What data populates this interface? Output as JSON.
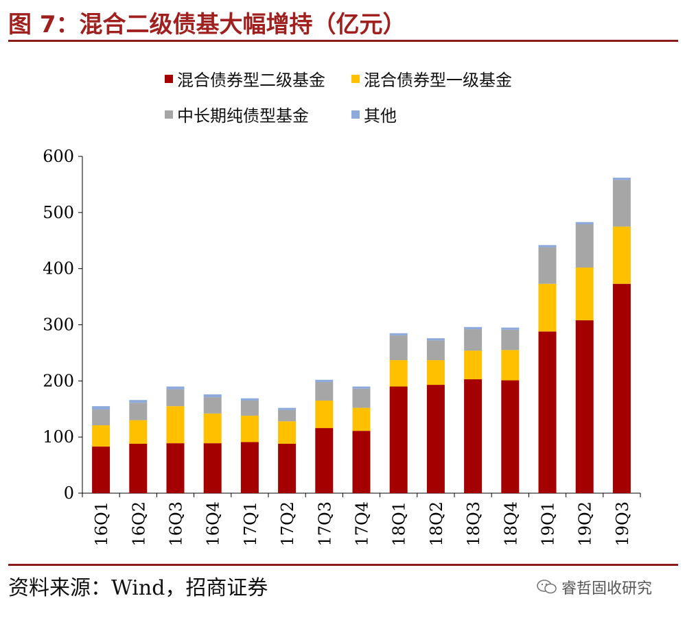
{
  "title": "图 7：混合二级债基大幅增持（亿元）",
  "source": "资料来源：Wind，招商证券",
  "watermark": "睿哲固收研究",
  "colors": {
    "series1": "#a50000",
    "series2": "#ffc000",
    "series3": "#a6a6a6",
    "series4": "#8eaadb",
    "accent": "#8b1a1a"
  },
  "chart_data": {
    "type": "bar",
    "stacked": true,
    "categories": [
      "16Q1",
      "16Q2",
      "16Q3",
      "16Q4",
      "17Q1",
      "17Q2",
      "17Q3",
      "17Q4",
      "18Q1",
      "18Q2",
      "18Q3",
      "18Q4",
      "19Q1",
      "19Q2",
      "19Q3"
    ],
    "series": [
      {
        "name": "混合债券型二级基金",
        "values": [
          83,
          88,
          89,
          89,
          91,
          88,
          116,
          111,
          190,
          193,
          203,
          201,
          288,
          308,
          373
        ]
      },
      {
        "name": "混合债券型一级基金",
        "values": [
          38,
          42,
          66,
          53,
          47,
          40,
          49,
          41,
          47,
          44,
          51,
          54,
          85,
          94,
          102
        ]
      },
      {
        "name": "中长期纯债型基金",
        "values": [
          28,
          31,
          30,
          29,
          27,
          20,
          33,
          34,
          44,
          35,
          38,
          36,
          65,
          77,
          83
        ]
      },
      {
        "name": "其他",
        "values": [
          6,
          5,
          5,
          5,
          4,
          4,
          4,
          4,
          4,
          4,
          4,
          4,
          4,
          4,
          4
        ]
      }
    ],
    "yticks": [
      0,
      100,
      200,
      300,
      400,
      500,
      600
    ],
    "ylim": [
      0,
      600
    ],
    "legend_position": "top"
  }
}
